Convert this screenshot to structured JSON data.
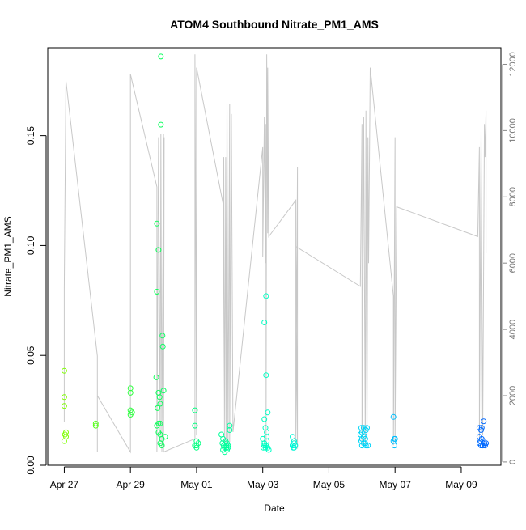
{
  "chart_data": {
    "type": "scatter",
    "title": "ATOM4 Southbound Nitrate_PM1_AMS",
    "xlabel": "Date",
    "ylabel": "Nitrate_PM1_AMS",
    "x_ticks": [
      "Apr 27",
      "Apr 29",
      "May 01",
      "May 03",
      "May 05",
      "May 07",
      "May 09"
    ],
    "x_tick_days": [
      0,
      2,
      4,
      6,
      8,
      10,
      12
    ],
    "xlim_days": [
      -0.5,
      13.2
    ],
    "y_ticks": [
      "0.00",
      "0.05",
      "0.10",
      "0.15"
    ],
    "y_tick_values": [
      0,
      0.05,
      0.1,
      0.15
    ],
    "ylim": [
      0,
      0.19
    ],
    "y2_ticks": [
      "0",
      "2000",
      "4000",
      "6000",
      "8000",
      "10000",
      "12000"
    ],
    "y2_tick_values": [
      0,
      2000,
      4000,
      6000,
      8000,
      10000,
      12000
    ],
    "y2lim": [
      -100,
      12500
    ],
    "grid": false,
    "points": [
      [
        0.0,
        0.043
      ],
      [
        0.0,
        0.031
      ],
      [
        0.0,
        0.027
      ],
      [
        0.05,
        0.015
      ],
      [
        0.05,
        0.013
      ],
      [
        0.0,
        0.011
      ],
      [
        0.02,
        0.014
      ],
      [
        0.95,
        0.019
      ],
      [
        0.95,
        0.018
      ],
      [
        2.0,
        0.035
      ],
      [
        2.0,
        0.033
      ],
      [
        2.0,
        0.025
      ],
      [
        2.05,
        0.024
      ],
      [
        2.0,
        0.023
      ],
      [
        2.8,
        0.11
      ],
      [
        2.85,
        0.098
      ],
      [
        2.8,
        0.079
      ],
      [
        2.78,
        0.04
      ],
      [
        2.85,
        0.033
      ],
      [
        2.88,
        0.031
      ],
      [
        2.9,
        0.028
      ],
      [
        2.82,
        0.026
      ],
      [
        2.85,
        0.019
      ],
      [
        2.9,
        0.019
      ],
      [
        2.8,
        0.018
      ],
      [
        2.85,
        0.015
      ],
      [
        2.9,
        0.014
      ],
      [
        2.95,
        0.012
      ],
      [
        2.9,
        0.01
      ],
      [
        2.95,
        0.009
      ],
      [
        2.92,
        0.186
      ],
      [
        2.92,
        0.155
      ],
      [
        2.97,
        0.059
      ],
      [
        2.98,
        0.054
      ],
      [
        3.0,
        0.034
      ],
      [
        3.05,
        0.013
      ],
      [
        3.95,
        0.025
      ],
      [
        3.95,
        0.018
      ],
      [
        4.0,
        0.011
      ],
      [
        4.05,
        0.01
      ],
      [
        4.0,
        0.009
      ],
      [
        3.95,
        0.009
      ],
      [
        4.0,
        0.008
      ],
      [
        4.75,
        0.014
      ],
      [
        4.8,
        0.012
      ],
      [
        4.78,
        0.01
      ],
      [
        4.82,
        0.009
      ],
      [
        4.85,
        0.008
      ],
      [
        4.8,
        0.007
      ],
      [
        4.9,
        0.009
      ],
      [
        4.88,
        0.011
      ],
      [
        4.92,
        0.01
      ],
      [
        4.95,
        0.008
      ],
      [
        4.85,
        0.006
      ],
      [
        4.92,
        0.007
      ],
      [
        4.95,
        0.009
      ],
      [
        4.9,
        0.008
      ],
      [
        5.0,
        0.018
      ],
      [
        5.0,
        0.016
      ],
      [
        6.05,
        0.065
      ],
      [
        6.1,
        0.077
      ],
      [
        6.1,
        0.041
      ],
      [
        6.15,
        0.024
      ],
      [
        6.05,
        0.021
      ],
      [
        6.08,
        0.017
      ],
      [
        6.12,
        0.015
      ],
      [
        6.0,
        0.012
      ],
      [
        6.05,
        0.01
      ],
      [
        6.02,
        0.008
      ],
      [
        6.08,
        0.008
      ],
      [
        6.1,
        0.009
      ],
      [
        6.15,
        0.008
      ],
      [
        6.18,
        0.007
      ],
      [
        6.05,
        0.009
      ],
      [
        6.12,
        0.011
      ],
      [
        6.12,
        0.013
      ],
      [
        6.9,
        0.013
      ],
      [
        6.95,
        0.011
      ],
      [
        6.9,
        0.009
      ],
      [
        6.92,
        0.008
      ],
      [
        6.95,
        0.008
      ],
      [
        6.98,
        0.009
      ],
      [
        6.9,
        0.009
      ],
      [
        6.95,
        0.01
      ],
      [
        8.98,
        0.017
      ],
      [
        9.05,
        0.017
      ],
      [
        9.0,
        0.015
      ],
      [
        9.08,
        0.015
      ],
      [
        9.12,
        0.016
      ],
      [
        9.15,
        0.017
      ],
      [
        8.95,
        0.014
      ],
      [
        9.05,
        0.013
      ],
      [
        9.0,
        0.012
      ],
      [
        9.1,
        0.012
      ],
      [
        8.98,
        0.011
      ],
      [
        9.05,
        0.01
      ],
      [
        9.1,
        0.01
      ],
      [
        9.12,
        0.009
      ],
      [
        9.18,
        0.009
      ],
      [
        9.0,
        0.009
      ],
      [
        9.95,
        0.022
      ],
      [
        9.98,
        0.012
      ],
      [
        10.0,
        0.012
      ],
      [
        9.95,
        0.011
      ],
      [
        9.98,
        0.009
      ],
      [
        12.55,
        0.017
      ],
      [
        12.62,
        0.017
      ],
      [
        12.68,
        0.02
      ],
      [
        12.6,
        0.016
      ],
      [
        12.55,
        0.013
      ],
      [
        12.62,
        0.012
      ],
      [
        12.68,
        0.011
      ],
      [
        12.7,
        0.01
      ],
      [
        12.75,
        0.01
      ],
      [
        12.55,
        0.01
      ],
      [
        12.6,
        0.009
      ],
      [
        12.65,
        0.009
      ],
      [
        12.72,
        0.009
      ],
      [
        12.58,
        0.011
      ]
    ],
    "secondary_line": {
      "name": "",
      "points": [
        [
          0.0,
          5200
        ],
        [
          0.0,
          1200
        ],
        [
          0.0,
          5200
        ],
        [
          0.05,
          11500
        ],
        [
          1.0,
          3200
        ],
        [
          1.0,
          300
        ],
        [
          1.0,
          2000
        ],
        [
          2.0,
          300
        ],
        [
          2.0,
          11700
        ],
        [
          2.8,
          8300
        ],
        [
          2.8,
          300
        ],
        [
          2.85,
          9800
        ],
        [
          2.9,
          600
        ],
        [
          2.92,
          9900
        ],
        [
          2.95,
          300
        ],
        [
          3.0,
          9900
        ],
        [
          3.0,
          600
        ],
        [
          3.02,
          9800
        ],
        [
          3.0,
          300
        ],
        [
          3.95,
          700
        ],
        [
          3.95,
          12300
        ],
        [
          4.0,
          800
        ],
        [
          4.0,
          11900
        ],
        [
          4.8,
          7800
        ],
        [
          4.8,
          800
        ],
        [
          4.82,
          9200
        ],
        [
          4.85,
          600
        ],
        [
          4.88,
          9200
        ],
        [
          4.9,
          500
        ],
        [
          4.92,
          10900
        ],
        [
          4.95,
          500
        ],
        [
          5.0,
          10800
        ],
        [
          5.0,
          600
        ],
        [
          5.05,
          10500
        ],
        [
          5.1,
          900
        ],
        [
          6.0,
          9500
        ],
        [
          6.0,
          6200
        ],
        [
          6.05,
          10400
        ],
        [
          6.08,
          6000
        ],
        [
          6.1,
          10200
        ],
        [
          6.1,
          400
        ],
        [
          6.12,
          12300
        ],
        [
          6.15,
          6900
        ],
        [
          6.15,
          11900
        ],
        [
          6.18,
          6800
        ],
        [
          7.0,
          7900
        ],
        [
          7.0,
          500
        ],
        [
          7.05,
          8900
        ],
        [
          7.05,
          400
        ],
        [
          7.0,
          6500
        ],
        [
          8.95,
          5300
        ],
        [
          9.0,
          10200
        ],
        [
          9.0,
          500
        ],
        [
          9.05,
          10400
        ],
        [
          9.1,
          500
        ],
        [
          9.12,
          10600
        ],
        [
          9.15,
          500
        ],
        [
          9.18,
          9800
        ],
        [
          9.2,
          6000
        ],
        [
          9.25,
          11900
        ],
        [
          9.95,
          5000
        ],
        [
          9.95,
          500
        ],
        [
          10.0,
          9800
        ],
        [
          10.0,
          600
        ],
        [
          10.05,
          7700
        ],
        [
          12.5,
          6800
        ],
        [
          12.55,
          9500
        ],
        [
          12.55,
          700
        ],
        [
          12.6,
          10000
        ],
        [
          12.65,
          800
        ],
        [
          12.7,
          10200
        ],
        [
          12.72,
          9200
        ],
        [
          12.75,
          10600
        ],
        [
          12.75,
          6300
        ]
      ]
    },
    "colors": {
      "line": "#c8c8c8",
      "point_gradient": [
        "#7fff00",
        "#00ff66",
        "#00ffcc",
        "#00ccff",
        "#0066ff"
      ]
    }
  }
}
